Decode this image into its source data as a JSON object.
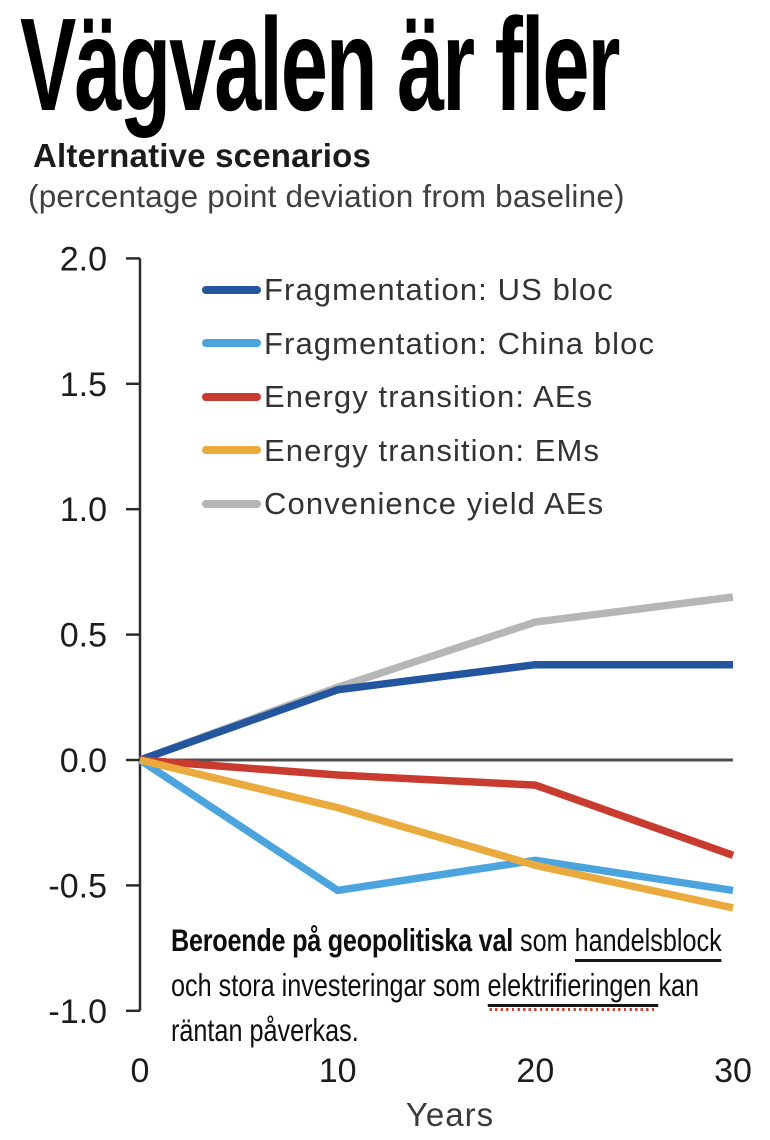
{
  "title": "Vägvalen är fler",
  "subtitle": "Alternative scenarios",
  "subtitle_note": "(percentage point deviation from baseline)",
  "chart_data": {
    "type": "line",
    "x": [
      0,
      10,
      20,
      30
    ],
    "x_ticks": [
      "0",
      "10",
      "20",
      "30"
    ],
    "xlabel": "Years",
    "xlim": [
      0,
      30
    ],
    "y_ticks": [
      2.0,
      1.5,
      1.0,
      0.5,
      0.0,
      -0.5,
      -1.0
    ],
    "ylim": [
      -1.0,
      2.0
    ],
    "zero_line": true,
    "grid": false,
    "legend_position": "inside-top-left",
    "series": [
      {
        "name": "Fragmentation: US bloc",
        "color": "#2456A0",
        "values": [
          0,
          0.28,
          0.38,
          0.38
        ]
      },
      {
        "name": "Fragmentation: China bloc",
        "color": "#4CA4DF",
        "values": [
          0,
          -0.52,
          -0.4,
          -0.52
        ]
      },
      {
        "name": "Energy transition: AEs",
        "color": "#C93B2F",
        "values": [
          0,
          -0.06,
          -0.1,
          -0.38
        ]
      },
      {
        "name": "Energy transition: EMs",
        "color": "#EAAA3E",
        "values": [
          0,
          -0.19,
          -0.42,
          -0.59
        ]
      },
      {
        "name": "Convenience yield AEs",
        "color": "#B6B6B6",
        "values": [
          0,
          0.29,
          0.55,
          0.65
        ]
      }
    ]
  },
  "annotation": {
    "segments": [
      {
        "text": "Beroende på geopolitiska val",
        "bold": true
      },
      {
        "text": " som ",
        "bold": false
      },
      {
        "text": "handelsblock",
        "underline": true
      },
      {
        "br": true
      },
      {
        "text": "och stora investeringar som ",
        "bold": false
      },
      {
        "text": "elektrifieringen ",
        "underline": true,
        "squiggle": true
      },
      {
        "text": "kan",
        "bold": false
      },
      {
        "br": true
      },
      {
        "text": "räntan påverkas.",
        "bold": false
      }
    ]
  },
  "colors": {
    "axis": "#2b2b2b",
    "zero_line": "#4f4f4f",
    "tick_label": "#1c1c1c",
    "axis_label": "#3a3a3a"
  }
}
